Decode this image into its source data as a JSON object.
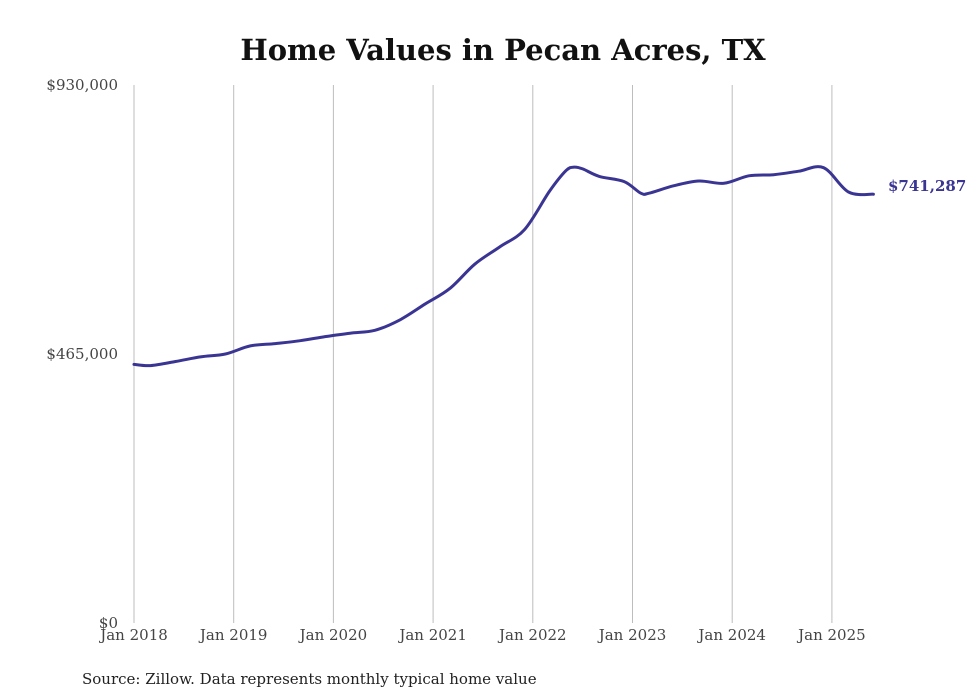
{
  "chart_data": {
    "type": "line",
    "title": "Home Values in Pecan Acres, TX",
    "xlabel": "",
    "ylabel": "",
    "source": "Source: Zillow. Data represents monthly typical home value",
    "y_ticks": [
      {
        "value": 0,
        "label": "$0"
      },
      {
        "value": 465000,
        "label": "$465,000"
      },
      {
        "value": 930000,
        "label": "$930,000"
      }
    ],
    "ylim": [
      0,
      930000
    ],
    "x_ticks": [
      "Jan 2018",
      "Jan 2019",
      "Jan 2020",
      "Jan 2021",
      "Jan 2022",
      "Jan 2023",
      "Jan 2024",
      "Jan 2025"
    ],
    "xlim": [
      "2018-01",
      "2025-06"
    ],
    "grid": "vertical lines at x ticks",
    "end_label": "$741,287",
    "line_color": "#3a3593",
    "series": [
      {
        "x": [
          "2018-01",
          "2018-03",
          "2018-06",
          "2018-09",
          "2018-12",
          "2019-03",
          "2019-06",
          "2019-09",
          "2019-12",
          "2020-03",
          "2020-06",
          "2020-09",
          "2020-12",
          "2021-03",
          "2021-06",
          "2021-09",
          "2021-12",
          "2022-03",
          "2022-05",
          "2022-06",
          "2022-07",
          "2022-09",
          "2022-12",
          "2023-02",
          "2023-03",
          "2023-06",
          "2023-09",
          "2023-12",
          "2024-03",
          "2024-06",
          "2024-09",
          "2024-12",
          "2025-03",
          "2025-06"
        ],
        "values": [
          447000,
          445000,
          452000,
          460000,
          465000,
          479000,
          483000,
          488000,
          495000,
          501000,
          506000,
          524000,
          551000,
          578000,
          620000,
          650000,
          680000,
          746000,
          782000,
          788000,
          785000,
          772000,
          763000,
          743000,
          743000,
          756000,
          764000,
          760000,
          773000,
          775000,
          781000,
          787000,
          745000,
          741287
        ]
      }
    ]
  }
}
